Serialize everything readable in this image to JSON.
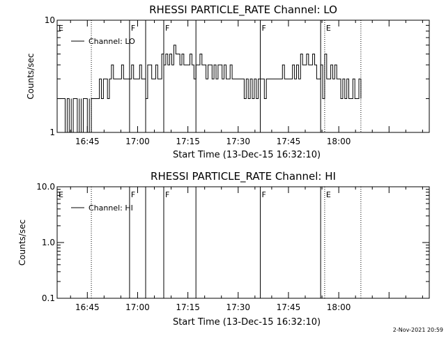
{
  "footer": {
    "timestamp": "2-Nov-2021 20:59"
  },
  "chart_data": [
    {
      "type": "line",
      "title": "RHESSI PARTICLE_RATE Channel: LO",
      "xlabel": "Start Time (13-Dec-15 16:32:10)",
      "ylabel": "Counts/sec",
      "yscale": "log",
      "ylim": [
        1,
        10
      ],
      "xlim_minutes": [
        16.6,
        18.45
      ],
      "xticks": [
        {
          "t": 16.75,
          "label": "16:45"
        },
        {
          "t": 17.0,
          "label": "17:00"
        },
        {
          "t": 17.25,
          "label": "17:15"
        },
        {
          "t": 17.5,
          "label": "17:30"
        },
        {
          "t": 17.75,
          "label": "17:45"
        },
        {
          "t": 18.0,
          "label": "18:00"
        }
      ],
      "yticks": [
        {
          "v": 1,
          "label": "1"
        },
        {
          "v": 10,
          "label": "10"
        }
      ],
      "legend": {
        "label": "Channel: LO",
        "position": "top-left"
      },
      "markers": [
        {
          "t": 16.6,
          "label": "E",
          "style": "none"
        },
        {
          "t": 16.77,
          "label": "",
          "style": "dotted"
        },
        {
          "t": 16.96,
          "label": "F",
          "style": "solid"
        },
        {
          "t": 17.04,
          "label": "",
          "style": "solid"
        },
        {
          "t": 17.13,
          "label": "F",
          "style": "solid"
        },
        {
          "t": 17.29,
          "label": "",
          "style": "solid"
        },
        {
          "t": 17.61,
          "label": "F",
          "style": "solid"
        },
        {
          "t": 17.91,
          "label": "",
          "style": "solid"
        },
        {
          "t": 17.93,
          "label": "E",
          "style": "dotted"
        },
        {
          "t": 18.11,
          "label": "",
          "style": "dotted"
        }
      ],
      "series": [
        {
          "name": "Channel: LO",
          "points": [
            [
              16.61,
              2
            ],
            [
              16.64,
              2
            ],
            [
              16.64,
              1
            ],
            [
              16.65,
              1
            ],
            [
              16.65,
              2
            ],
            [
              16.66,
              2
            ],
            [
              16.66,
              1
            ],
            [
              16.67,
              2
            ],
            [
              16.67,
              1
            ],
            [
              16.68,
              1
            ],
            [
              16.68,
              2
            ],
            [
              16.7,
              2
            ],
            [
              16.7,
              1
            ],
            [
              16.71,
              2
            ],
            [
              16.71,
              1
            ],
            [
              16.72,
              2
            ],
            [
              16.72,
              1
            ],
            [
              16.73,
              1
            ],
            [
              16.73,
              2
            ],
            [
              16.75,
              2
            ],
            [
              16.75,
              1
            ],
            [
              16.76,
              2
            ],
            [
              16.76,
              1
            ],
            [
              16.77,
              2
            ],
            [
              16.8,
              2
            ],
            [
              16.81,
              3
            ],
            [
              16.82,
              2
            ],
            [
              16.83,
              3
            ],
            [
              16.84,
              3
            ],
            [
              16.85,
              2
            ],
            [
              16.86,
              3
            ],
            [
              16.87,
              4
            ],
            [
              16.88,
              3
            ],
            [
              16.9,
              3
            ],
            [
              16.91,
              3
            ],
            [
              16.92,
              4
            ],
            [
              16.93,
              3
            ],
            [
              16.94,
              3
            ],
            [
              16.96,
              3
            ],
            [
              16.97,
              4
            ],
            [
              16.98,
              3
            ],
            [
              17,
              3
            ],
            [
              17.01,
              4
            ],
            [
              17.02,
              3
            ],
            [
              17.04,
              2
            ],
            [
              17.05,
              4
            ],
            [
              17.07,
              3
            ],
            [
              17.09,
              4
            ],
            [
              17.1,
              3
            ],
            [
              17.12,
              5
            ],
            [
              17.13,
              4
            ],
            [
              17.14,
              5
            ],
            [
              17.15,
              4
            ],
            [
              17.16,
              5
            ],
            [
              17.17,
              4
            ],
            [
              17.18,
              6
            ],
            [
              17.19,
              5
            ],
            [
              17.2,
              5
            ],
            [
              17.21,
              4
            ],
            [
              17.22,
              5
            ],
            [
              17.23,
              4
            ],
            [
              17.25,
              4
            ],
            [
              17.26,
              5
            ],
            [
              17.27,
              4
            ],
            [
              17.28,
              3
            ],
            [
              17.29,
              4
            ],
            [
              17.3,
              4
            ],
            [
              17.31,
              5
            ],
            [
              17.32,
              4
            ],
            [
              17.33,
              4
            ],
            [
              17.34,
              3
            ],
            [
              17.35,
              4
            ],
            [
              17.36,
              4
            ],
            [
              17.37,
              3
            ],
            [
              17.38,
              4
            ],
            [
              17.39,
              3
            ],
            [
              17.4,
              4
            ],
            [
              17.41,
              4
            ],
            [
              17.42,
              3
            ],
            [
              17.43,
              4
            ],
            [
              17.44,
              3
            ],
            [
              17.45,
              3
            ],
            [
              17.46,
              4
            ],
            [
              17.47,
              3
            ],
            [
              17.48,
              3
            ],
            [
              17.49,
              3
            ],
            [
              17.5,
              3
            ],
            [
              17.51,
              3
            ],
            [
              17.52,
              3
            ],
            [
              17.53,
              2
            ],
            [
              17.54,
              3
            ],
            [
              17.55,
              2
            ],
            [
              17.56,
              3
            ],
            [
              17.57,
              2
            ],
            [
              17.58,
              3
            ],
            [
              17.59,
              2
            ],
            [
              17.6,
              3
            ],
            [
              17.61,
              3
            ],
            [
              17.62,
              3
            ],
            [
              17.63,
              2
            ],
            [
              17.64,
              3
            ],
            [
              17.65,
              3
            ],
            [
              17.66,
              3
            ],
            [
              17.67,
              3
            ],
            [
              17.68,
              3
            ],
            [
              17.69,
              3
            ],
            [
              17.7,
              3
            ],
            [
              17.71,
              3
            ],
            [
              17.72,
              4
            ],
            [
              17.73,
              3
            ],
            [
              17.74,
              3
            ],
            [
              17.75,
              3
            ],
            [
              17.76,
              3
            ],
            [
              17.77,
              4
            ],
            [
              17.78,
              3
            ],
            [
              17.79,
              4
            ],
            [
              17.8,
              3
            ],
            [
              17.81,
              5
            ],
            [
              17.82,
              4
            ],
            [
              17.83,
              4
            ],
            [
              17.84,
              5
            ],
            [
              17.85,
              4
            ],
            [
              17.86,
              4
            ],
            [
              17.87,
              5
            ],
            [
              17.88,
              4
            ],
            [
              17.89,
              3
            ],
            [
              17.9,
              3
            ],
            [
              17.91,
              4
            ],
            [
              17.92,
              2
            ],
            [
              17.93,
              5
            ],
            [
              17.94,
              3
            ],
            [
              17.95,
              3
            ],
            [
              17.96,
              4
            ],
            [
              17.97,
              3
            ],
            [
              17.98,
              4
            ],
            [
              17.99,
              3
            ],
            [
              18,
              3
            ],
            [
              18.01,
              2
            ],
            [
              18.02,
              3
            ],
            [
              18.03,
              2
            ],
            [
              18.04,
              3
            ],
            [
              18.05,
              2
            ],
            [
              18.06,
              2
            ],
            [
              18.07,
              3
            ],
            [
              18.08,
              2
            ],
            [
              18.09,
              2
            ],
            [
              18.1,
              3
            ],
            [
              18.11,
              2
            ]
          ]
        }
      ]
    },
    {
      "type": "line",
      "title": "RHESSI PARTICLE_RATE Channel: HI",
      "xlabel": "Start Time (13-Dec-15 16:32:10)",
      "ylabel": "Counts/sec",
      "yscale": "log",
      "ylim": [
        0.1,
        10
      ],
      "xlim_minutes": [
        16.6,
        18.45
      ],
      "xticks": [
        {
          "t": 16.75,
          "label": "16:45"
        },
        {
          "t": 17.0,
          "label": "17:00"
        },
        {
          "t": 17.25,
          "label": "17:15"
        },
        {
          "t": 17.5,
          "label": "17:30"
        },
        {
          "t": 17.75,
          "label": "17:45"
        },
        {
          "t": 18.0,
          "label": "18:00"
        }
      ],
      "yticks": [
        {
          "v": 0.1,
          "label": "0.1"
        },
        {
          "v": 1,
          "label": "1.0"
        },
        {
          "v": 10,
          "label": "10.0"
        }
      ],
      "legend": {
        "label": "Channel: HI",
        "position": "top-left"
      },
      "markers": [
        {
          "t": 16.6,
          "label": "E",
          "style": "none"
        },
        {
          "t": 16.77,
          "label": "",
          "style": "dotted"
        },
        {
          "t": 16.96,
          "label": "F",
          "style": "solid"
        },
        {
          "t": 17.04,
          "label": "",
          "style": "solid"
        },
        {
          "t": 17.13,
          "label": "F",
          "style": "solid"
        },
        {
          "t": 17.29,
          "label": "",
          "style": "solid"
        },
        {
          "t": 17.61,
          "label": "F",
          "style": "solid"
        },
        {
          "t": 17.91,
          "label": "",
          "style": "solid"
        },
        {
          "t": 17.93,
          "label": "E",
          "style": "dotted"
        },
        {
          "t": 18.11,
          "label": "",
          "style": "dotted"
        }
      ],
      "series": [
        {
          "name": "Channel: HI",
          "points": []
        }
      ]
    }
  ]
}
